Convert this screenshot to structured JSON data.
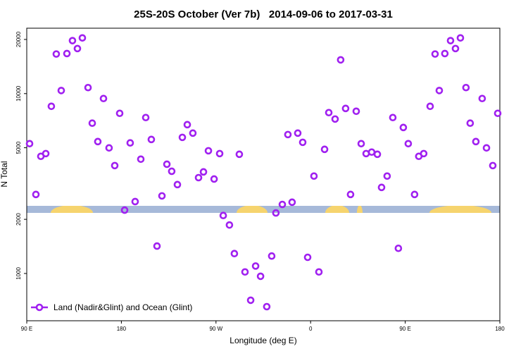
{
  "chart_data": {
    "type": "scatter",
    "title": "25S-20S October (Ver 7b)   2014-09-06 to 2017-03-31",
    "x_label": "Longitude (deg E)",
    "y_label": "N Total",
    "log_y": true,
    "grid": false,
    "legend_position": "bottom-left",
    "xlim": [
      90,
      540
    ],
    "xticks": [
      {
        "value": 90,
        "label": "90 E"
      },
      {
        "value": 180,
        "label": "180"
      },
      {
        "value": 270,
        "label": "90 W"
      },
      {
        "value": 360,
        "label": "0"
      },
      {
        "value": 450,
        "label": "90 E"
      },
      {
        "value": 540,
        "label": "180"
      }
    ],
    "ylim": [
      546,
      23100
    ],
    "yticks": [
      1000,
      2000,
      5000,
      10000,
      20000
    ],
    "series": [
      {
        "name": "Land (Nadir&Glint) and Ocean (Glint)",
        "color": "#a020f0",
        "x": [
          92.7,
          98.7,
          103.4,
          108.1,
          113.4,
          118.1,
          122.8,
          128.2,
          133.5,
          138.2,
          142.9,
          148.3,
          152.3,
          157.6,
          163.0,
          168.3,
          173.7,
          178.4,
          183.1,
          188.4,
          193.1,
          198.5,
          203.2,
          208.5,
          213.9,
          218.6,
          223.3,
          227.9,
          233.3,
          238.0,
          242.7,
          248.0,
          253.4,
          258.1,
          262.8,
          268.2,
          273.5,
          276.9,
          282.8,
          287.5,
          292.2,
          297.6,
          303.0,
          307.7,
          312.4,
          318.3,
          323.0,
          327.0,
          333.1,
          338.4,
          342.4,
          347.8,
          352.5,
          357.2,
          363.2,
          367.9,
          373.3,
          377.3,
          383.3,
          388.6,
          393.3,
          398.0,
          403.4,
          408.1,
          412.8,
          418.1,
          423.5,
          427.5,
          432.8,
          438.2,
          443.5,
          448.2,
          452.9,
          458.9,
          462.9,
          467.6,
          473.7,
          478.4,
          482.4,
          487.7,
          493.1,
          497.8,
          502.5,
          507.8,
          511.8,
          517.2,
          523.2,
          527.3,
          533.3,
          538.0
        ],
        "values": [
          5270,
          2750,
          4480,
          4640,
          8500,
          16600,
          10400,
          16700,
          19700,
          17800,
          20400,
          10800,
          6850,
          5410,
          9390,
          4990,
          3980,
          7770,
          2250,
          5320,
          2510,
          4320,
          7360,
          5560,
          1420,
          2700,
          4050,
          3700,
          3120,
          5710,
          6720,
          6030,
          3410,
          3670,
          4810,
          3350,
          4640,
          2100,
          1860,
          1290,
          4600,
          1020,
          710,
          1100,
          965,
          654,
          1250,
          2170,
          2420,
          5920,
          2490,
          6030,
          5360,
          1230,
          3480,
          1020,
          4900,
          7840,
          7220,
          15400,
          8270,
          2750,
          7980,
          5270,
          4640,
          4730,
          4600,
          3010,
          3480,
          7360,
          1380,
          6480,
          5270,
          2750,
          4480,
          4640,
          8500,
          16600,
          10400,
          16700,
          19700,
          17800,
          20400,
          10800,
          6850,
          5410,
          9390,
          4990,
          3980,
          7770
        ]
      }
    ]
  }
}
